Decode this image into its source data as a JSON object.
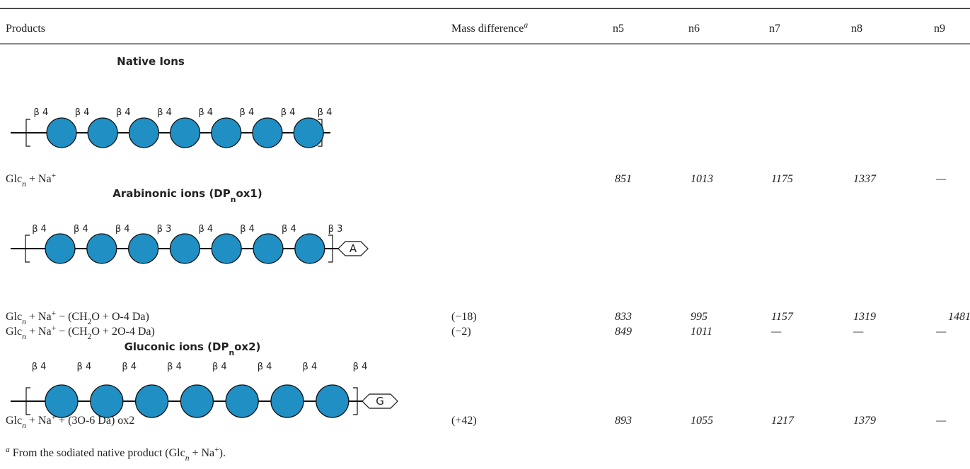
{
  "table": {
    "header": {
      "products": "Products",
      "mass_difference": [
        {
          "t": "Mass difference"
        },
        {
          "t": "a",
          "s": "sup"
        }
      ],
      "n": [
        "n5",
        "n6",
        "n7",
        "n8",
        "n9"
      ]
    },
    "sections": [
      {
        "title": [
          {
            "t": "Native Ions"
          }
        ],
        "color": "#2e4ea1",
        "glycan": {
          "linkages": [
            "β 4",
            "β 4",
            "β 4",
            "β 4",
            "β 4",
            "β 4",
            "β 4",
            "β 4"
          ]
        },
        "rows": [
          {
            "product": [
              {
                "t": "Glc"
              },
              {
                "t": "n",
                "s": "sub"
              },
              {
                "t": " + Na"
              },
              {
                "t": "+",
                "s": "sup"
              }
            ],
            "values": [
              851,
              1013,
              1175,
              1337,
              "—"
            ]
          }
        ]
      },
      {
        "title": [
          {
            "t": "Arabinonic ions (DP"
          },
          {
            "t": "n",
            "s": "sub"
          },
          {
            "t": "ox1)"
          }
        ],
        "color": "#e3262a",
        "glycan": {
          "linkages": [
            "β 4",
            "β 4",
            "β 4",
            "β 3",
            "β 4",
            "β 4",
            "β 4",
            "β 3"
          ],
          "end_tag": "A"
        },
        "rows": [
          {
            "product": [
              {
                "t": "Glc"
              },
              {
                "t": "n",
                "s": "sub"
              },
              {
                "t": " + Na"
              },
              {
                "t": "+",
                "s": "sup"
              },
              {
                "t": " − (CH"
              },
              {
                "t": "2",
                "s": "sub"
              },
              {
                "t": "O + O-4 Da)"
              }
            ],
            "mass_difference": "(−18)",
            "values": [
              833,
              995,
              1157,
              1319,
              1481
            ]
          },
          {
            "product": [
              {
                "t": "Glc"
              },
              {
                "t": "n",
                "s": "sub"
              },
              {
                "t": " + Na"
              },
              {
                "t": "+",
                "s": "sup"
              },
              {
                "t": " − (CH"
              },
              {
                "t": "2",
                "s": "sub"
              },
              {
                "t": "O + 2O-4 Da)"
              }
            ],
            "mass_difference": "(−2)",
            "values": [
              849,
              1011,
              "—",
              "—",
              "—"
            ]
          }
        ]
      },
      {
        "title": [
          {
            "t": "Gluconic ions (DP"
          },
          {
            "t": "n",
            "s": "sub"
          },
          {
            "t": "ox2)"
          }
        ],
        "color": "#f7b800",
        "glycan": {
          "linkages": [
            "β 4",
            "β 4",
            "β 4",
            "β 4",
            "β 4",
            "β 4",
            "β 4",
            "β 4"
          ],
          "end_tag": "G"
        },
        "rows": [
          {
            "product": [
              {
                "t": "Glc"
              },
              {
                "t": "n",
                "s": "sub"
              },
              {
                "t": " + Na"
              },
              {
                "t": "+",
                "s": "sup"
              },
              {
                "t": " + (3O-6 Da) ox2"
              }
            ],
            "mass_difference": "(+42)",
            "values": [
              893,
              1055,
              1217,
              1379,
              "—"
            ]
          }
        ]
      }
    ]
  },
  "footnote": [
    {
      "t": "a",
      "s": "sup"
    },
    {
      "t": " From the sodiated native product (Glc"
    },
    {
      "t": "n",
      "s": "sub"
    },
    {
      "t": " + Na"
    },
    {
      "t": "+",
      "s": "sup"
    },
    {
      "t": ")."
    }
  ]
}
